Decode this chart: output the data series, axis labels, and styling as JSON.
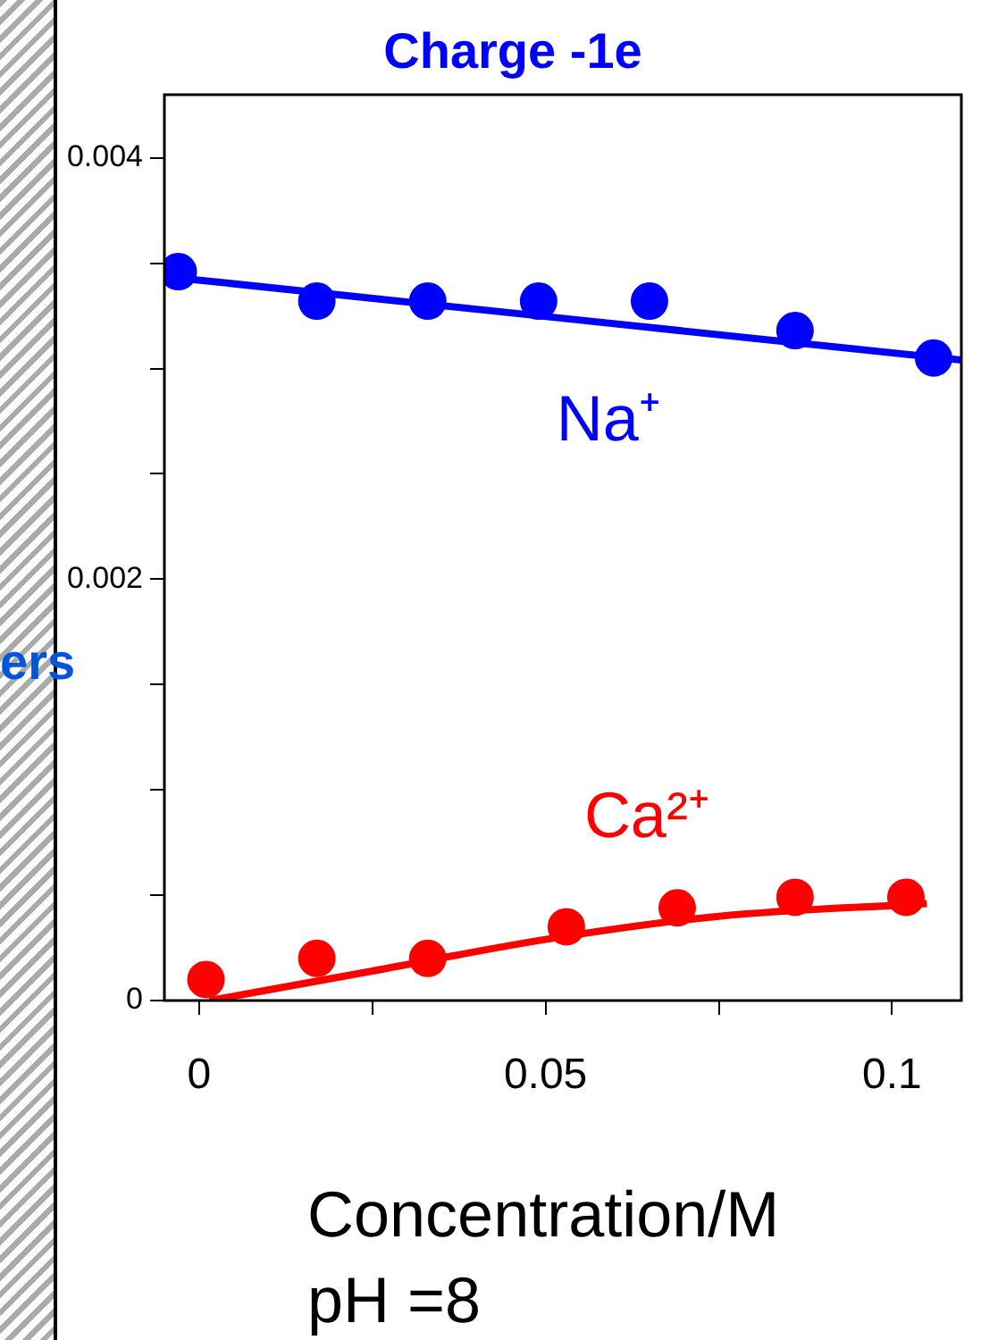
{
  "chart_data": {
    "type": "scatter",
    "title": "Charge -1e",
    "xlabel": "Concentration/M",
    "annotations": [
      "ers",
      "pH =8"
    ],
    "xlim": [
      -0.005,
      0.11
    ],
    "xticks": [
      0,
      {
        "value": 0.025,
        "label": null
      },
      0.05,
      {
        "value": 0.075,
        "label": null
      },
      0.1
    ],
    "ylim": [
      0,
      0.0043
    ],
    "yticks": [
      0,
      {
        "value": 0.0005,
        "label": null
      },
      {
        "value": 0.001,
        "label": null
      },
      {
        "value": 0.0015,
        "label": null
      },
      0.002,
      {
        "value": 0.0025,
        "label": null
      },
      {
        "value": 0.003,
        "label": null
      },
      {
        "value": 0.0035,
        "label": null
      },
      0.004
    ],
    "grid": false,
    "legend": false,
    "series": [
      {
        "name": "Na⁺",
        "color": "#0000ff",
        "type": "scatter",
        "marker": "circle",
        "x": [
          -0.003,
          0.017,
          0.033,
          0.049,
          0.065,
          0.086,
          0.106
        ],
        "values": [
          0.00346,
          0.00332,
          0.00332,
          0.00332,
          0.00332,
          0.00318,
          0.00305
        ]
      },
      {
        "color": "#0000ff",
        "type": "line",
        "marker": "none",
        "x": [
          -0.003,
          0.11
        ],
        "values": [
          0.00343,
          0.00304
        ]
      },
      {
        "name": "Ca²⁺",
        "color": "#ff0000",
        "type": "scatter",
        "marker": "circle",
        "x": [
          0.001,
          0.017,
          0.033,
          0.053,
          0.069,
          0.086,
          0.102
        ],
        "values": [
          0.0001,
          0.0002,
          0.0002,
          0.00035,
          0.00044,
          0.00049,
          0.00049
        ]
      },
      {
        "color": "#ff0000",
        "type": "line",
        "marker": "none",
        "x": [
          0.0015,
          0.025,
          0.05,
          0.075,
          0.105
        ],
        "values": [
          0,
          0.00014,
          0.00029,
          0.0004,
          0.00046
        ]
      }
    ]
  }
}
